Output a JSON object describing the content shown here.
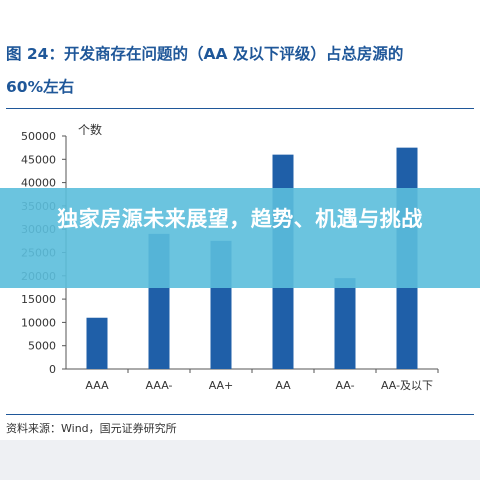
{
  "figure": {
    "title_line1": "图 24：开发商存在问题的（AA 及以下评级）占总房源的",
    "title_line2": "60%左右",
    "source": "资料来源：Wind，国元证券研究所"
  },
  "overlay": {
    "headline": "独家房源未来展望，趋势、机遇与挑战"
  },
  "colors": {
    "bar": "#1f5fa8",
    "title": "#1f5799",
    "overlay": "#5bbedc"
  },
  "chart_data": {
    "type": "bar",
    "unit_label": "个数",
    "categories": [
      "AAA",
      "AAA-",
      "AA+",
      "AA",
      "AA-",
      "AA-及以下"
    ],
    "values": [
      11000,
      29000,
      27500,
      46000,
      19500,
      47500
    ],
    "ylim": [
      0,
      50000
    ],
    "yticks": [
      0,
      5000,
      10000,
      15000,
      20000,
      25000,
      30000,
      35000,
      40000,
      45000,
      50000
    ],
    "grid": false,
    "legend": "none"
  }
}
